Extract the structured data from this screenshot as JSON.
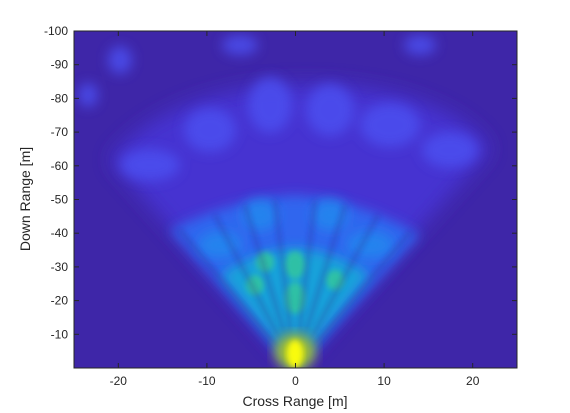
{
  "chart_data": {
    "type": "heatmap",
    "title": "",
    "xlabel": "Cross Range [m]",
    "ylabel": "Down Range [m]",
    "xlim": [
      -25,
      25
    ],
    "ylim": [
      -100,
      0
    ],
    "y_direction": "reversed",
    "x_ticks": [
      -20,
      -10,
      0,
      10,
      20
    ],
    "y_ticks": [
      -100,
      -90,
      -80,
      -70,
      -60,
      -50,
      -40,
      -30,
      -20,
      -10
    ],
    "x_tick_labels": [
      "-20",
      "-10",
      "0",
      "10",
      "20"
    ],
    "y_tick_labels": [
      "-100",
      "-90",
      "-80",
      "-70",
      "-60",
      "-50",
      "-40",
      "-30",
      "-20",
      "-10"
    ],
    "grid": false,
    "colormap": [
      "#3e26a8",
      "#4a3fe0",
      "#2d7ff9",
      "#16a7da",
      "#26c2a5",
      "#a6c22e",
      "#f9fb0e"
    ],
    "hotspots": [
      {
        "x": 0,
        "y": -5,
        "intensity": 1.0
      },
      {
        "x": 0,
        "y": -21,
        "intensity": 0.65
      },
      {
        "x": 0,
        "y": -30,
        "intensity": 0.55
      },
      {
        "x": -4,
        "y": -24,
        "intensity": 0.5
      },
      {
        "x": 5,
        "y": -23,
        "intensity": 0.45
      },
      {
        "x": -3,
        "y": -33,
        "intensity": 0.45
      },
      {
        "x": 2,
        "y": -35,
        "intensity": 0.4
      },
      {
        "x": -8,
        "y": -36,
        "intensity": 0.35
      },
      {
        "x": 8,
        "y": -33,
        "intensity": 0.35
      }
    ]
  }
}
